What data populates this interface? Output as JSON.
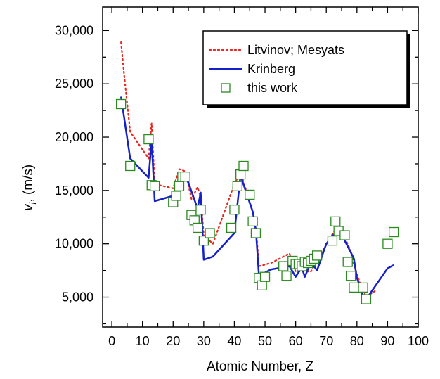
{
  "chart_data": {
    "type": "line",
    "title": "",
    "xlabel": "Atomic Number, Z",
    "ylabel_main": "v",
    "ylabel_sub": "i",
    "ylabel_rest": ", (m/s)",
    "xlim": [
      -3,
      100
    ],
    "ylim": [
      2200,
      32200
    ],
    "xticks": [
      0,
      10,
      20,
      30,
      40,
      50,
      60,
      70,
      80,
      90,
      100
    ],
    "xtick_labels": [
      "0",
      "10",
      "20",
      "30",
      "40",
      "50",
      "60",
      "70",
      "80",
      "90",
      "100"
    ],
    "yticks": [
      5000,
      10000,
      15000,
      20000,
      25000,
      30000
    ],
    "ytick_labels": [
      "5,000",
      "10,000",
      "15,000",
      "20,000",
      "25,000",
      "30,000"
    ],
    "grid": false,
    "legend_position": "top-right",
    "legend": [
      {
        "name": "Litvinov; Mesyats",
        "style": "dotted",
        "color": "#e8261e"
      },
      {
        "name": "Krinberg",
        "style": "solid",
        "color": "#1420c8"
      },
      {
        "name": "this work",
        "style": "square-marker",
        "color": "#2a8a1e"
      }
    ],
    "series": [
      {
        "name": "Litvinov; Mesyats",
        "style": "dotted",
        "color": "#e8261e",
        "points": [
          [
            3,
            28900
          ],
          [
            4,
            25900
          ],
          [
            6,
            20500
          ],
          [
            12,
            18000
          ],
          [
            13,
            21300
          ],
          [
            14,
            15600
          ],
          [
            20,
            15200
          ],
          [
            22,
            17000
          ],
          [
            24,
            16800
          ],
          [
            26,
            14200
          ],
          [
            28,
            15300
          ],
          [
            29,
            14400
          ],
          [
            30,
            10800
          ],
          [
            33,
            10000
          ],
          [
            40,
            15600
          ],
          [
            42,
            16700
          ],
          [
            46,
            13000
          ],
          [
            47,
            11700
          ],
          [
            48,
            7900
          ],
          [
            52,
            8200
          ],
          [
            58,
            9100
          ],
          [
            60,
            7400
          ],
          [
            63,
            7400
          ],
          [
            65,
            7400
          ],
          [
            70,
            9900
          ],
          [
            74,
            11900
          ],
          [
            78,
            9300
          ],
          [
            79,
            8000
          ],
          [
            81,
            6300
          ],
          [
            83,
            5000
          ],
          [
            86,
            5600
          ]
        ]
      },
      {
        "name": "Krinberg",
        "style": "solid",
        "color": "#1420c8",
        "points": [
          [
            3,
            23800
          ],
          [
            6,
            18000
          ],
          [
            12,
            16200
          ],
          [
            13,
            19700
          ],
          [
            14,
            14000
          ],
          [
            20,
            14500
          ],
          [
            22,
            16200
          ],
          [
            24,
            16600
          ],
          [
            26,
            14900
          ],
          [
            28,
            13300
          ],
          [
            29,
            14800
          ],
          [
            30,
            8500
          ],
          [
            33,
            8800
          ],
          [
            40,
            11000
          ],
          [
            42,
            16400
          ],
          [
            46,
            13000
          ],
          [
            47,
            11300
          ],
          [
            48,
            7100
          ],
          [
            50,
            7300
          ],
          [
            52,
            7600
          ],
          [
            58,
            7900
          ],
          [
            60,
            6900
          ],
          [
            62,
            7800
          ],
          [
            63,
            6900
          ],
          [
            65,
            8300
          ],
          [
            67,
            7500
          ],
          [
            70,
            10000
          ],
          [
            74,
            11400
          ],
          [
            78,
            9200
          ],
          [
            79,
            8600
          ],
          [
            80,
            6800
          ],
          [
            81,
            6000
          ],
          [
            82,
            5000
          ],
          [
            83,
            4800
          ],
          [
            90,
            7700
          ],
          [
            92,
            8000
          ]
        ]
      },
      {
        "name": "this work",
        "style": "square-marker",
        "color": "#2a8a1e",
        "points": [
          [
            3,
            23100
          ],
          [
            6,
            17300
          ],
          [
            12,
            19800
          ],
          [
            13,
            15500
          ],
          [
            14,
            15400
          ],
          [
            20,
            13900
          ],
          [
            21,
            14500
          ],
          [
            22,
            15400
          ],
          [
            23,
            16300
          ],
          [
            24,
            16300
          ],
          [
            26,
            12700
          ],
          [
            27,
            12200
          ],
          [
            28,
            11500
          ],
          [
            29,
            13200
          ],
          [
            30,
            10300
          ],
          [
            32,
            11000
          ],
          [
            39,
            11500
          ],
          [
            40,
            13200
          ],
          [
            41,
            15400
          ],
          [
            42,
            16500
          ],
          [
            43,
            17300
          ],
          [
            45,
            14600
          ],
          [
            46,
            12100
          ],
          [
            47,
            11000
          ],
          [
            48,
            6800
          ],
          [
            49,
            6100
          ],
          [
            50,
            6900
          ],
          [
            56,
            7900
          ],
          [
            57,
            7000
          ],
          [
            59,
            8400
          ],
          [
            60,
            8100
          ],
          [
            61,
            8100
          ],
          [
            62,
            7900
          ],
          [
            63,
            8300
          ],
          [
            64,
            8200
          ],
          [
            65,
            8400
          ],
          [
            66,
            8600
          ],
          [
            67,
            8900
          ],
          [
            72,
            10300
          ],
          [
            73,
            12100
          ],
          [
            74,
            11200
          ],
          [
            76,
            10800
          ],
          [
            77,
            8300
          ],
          [
            78,
            7000
          ],
          [
            79,
            5900
          ],
          [
            82,
            5900
          ],
          [
            83,
            4800
          ],
          [
            90,
            10000
          ],
          [
            92,
            11100
          ]
        ]
      }
    ]
  }
}
